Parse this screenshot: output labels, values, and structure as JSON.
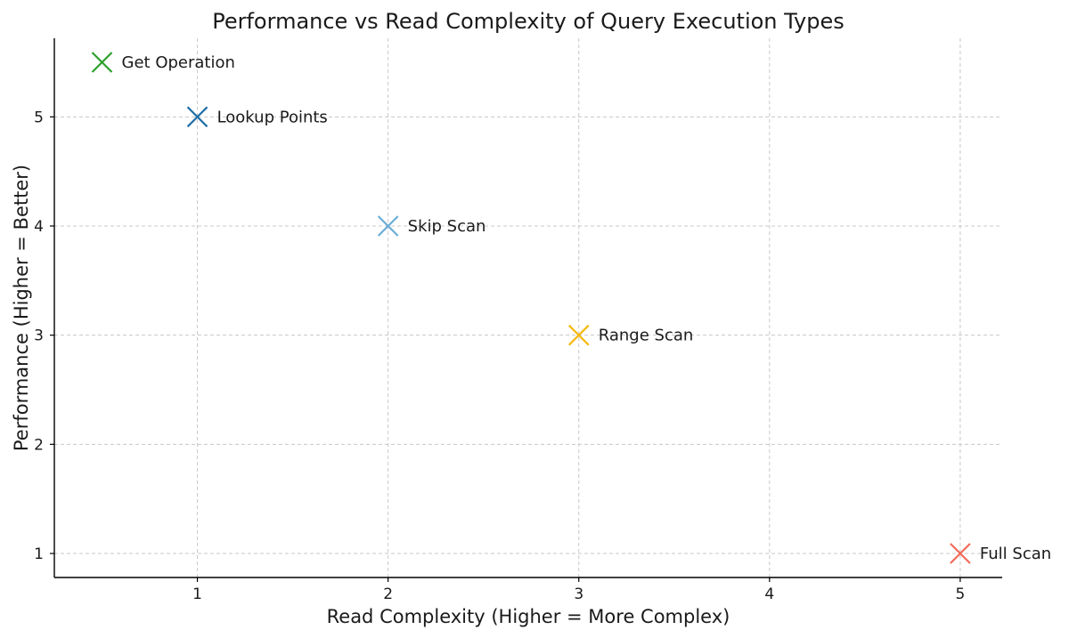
{
  "chart_data": {
    "type": "scatter",
    "title": "Performance vs Read Complexity of Query Execution Types",
    "xlabel": "Read Complexity (Higher = More Complex)",
    "ylabel": "Performance (Higher = Better)",
    "xlim": [
      0.25,
      5.22
    ],
    "ylim": [
      0.78,
      5.72
    ],
    "xticks": [
      1,
      2,
      3,
      4,
      5
    ],
    "yticks": [
      1,
      2,
      3,
      4,
      5
    ],
    "grid": true,
    "marker": "x",
    "points": [
      {
        "label": "Get Operation",
        "x": 0.5,
        "y": 5.5,
        "color": "#2ca02c"
      },
      {
        "label": "Lookup Points",
        "x": 1,
        "y": 5,
        "color": "#1f6fa8"
      },
      {
        "label": "Skip Scan",
        "x": 2,
        "y": 4,
        "color": "#6baed6"
      },
      {
        "label": "Range Scan",
        "x": 3,
        "y": 3,
        "color": "#f5b80f"
      },
      {
        "label": "Full Scan",
        "x": 5,
        "y": 1,
        "color": "#f26b5b"
      }
    ]
  }
}
